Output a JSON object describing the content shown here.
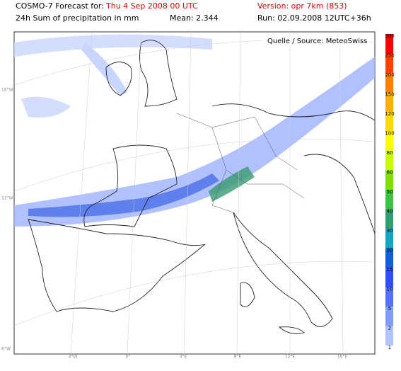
{
  "header": {
    "line1_label": "COSMO-7 Forecast for:",
    "forecast_time": "Thu 4 Sep 2008 00 UTC",
    "version": "Version: opr 7km (853)",
    "line2_label": "24h Sum of precipitation in mm",
    "mean": "Mean: 2.344",
    "run": "Run: 02.09.2008 12UTC+36h"
  },
  "source": "Quelle / Source: MeteoSwiss",
  "left_labels": [
    "18°W",
    "12°W",
    "6°W"
  ],
  "bottom_labels": [
    "4°W",
    "0°",
    "4°E",
    "8°E",
    "12°E",
    "16°E"
  ],
  "colorbar": {
    "levels": [
      "300",
      "250",
      "200",
      "150",
      "120",
      "100",
      "80",
      "60",
      "50",
      "40",
      "30",
      "20",
      "15",
      "10",
      "5",
      "2",
      "1"
    ],
    "colors": [
      "#ff0000",
      "#ff4000",
      "#ff8000",
      "#ffb000",
      "#ffd800",
      "#ffff00",
      "#c8ff00",
      "#80e000",
      "#40c040",
      "#30a070",
      "#20a0c0",
      "#1060d0",
      "#3050f0",
      "#5575f0",
      "#809cf8",
      "#b0c4ff"
    ]
  }
}
